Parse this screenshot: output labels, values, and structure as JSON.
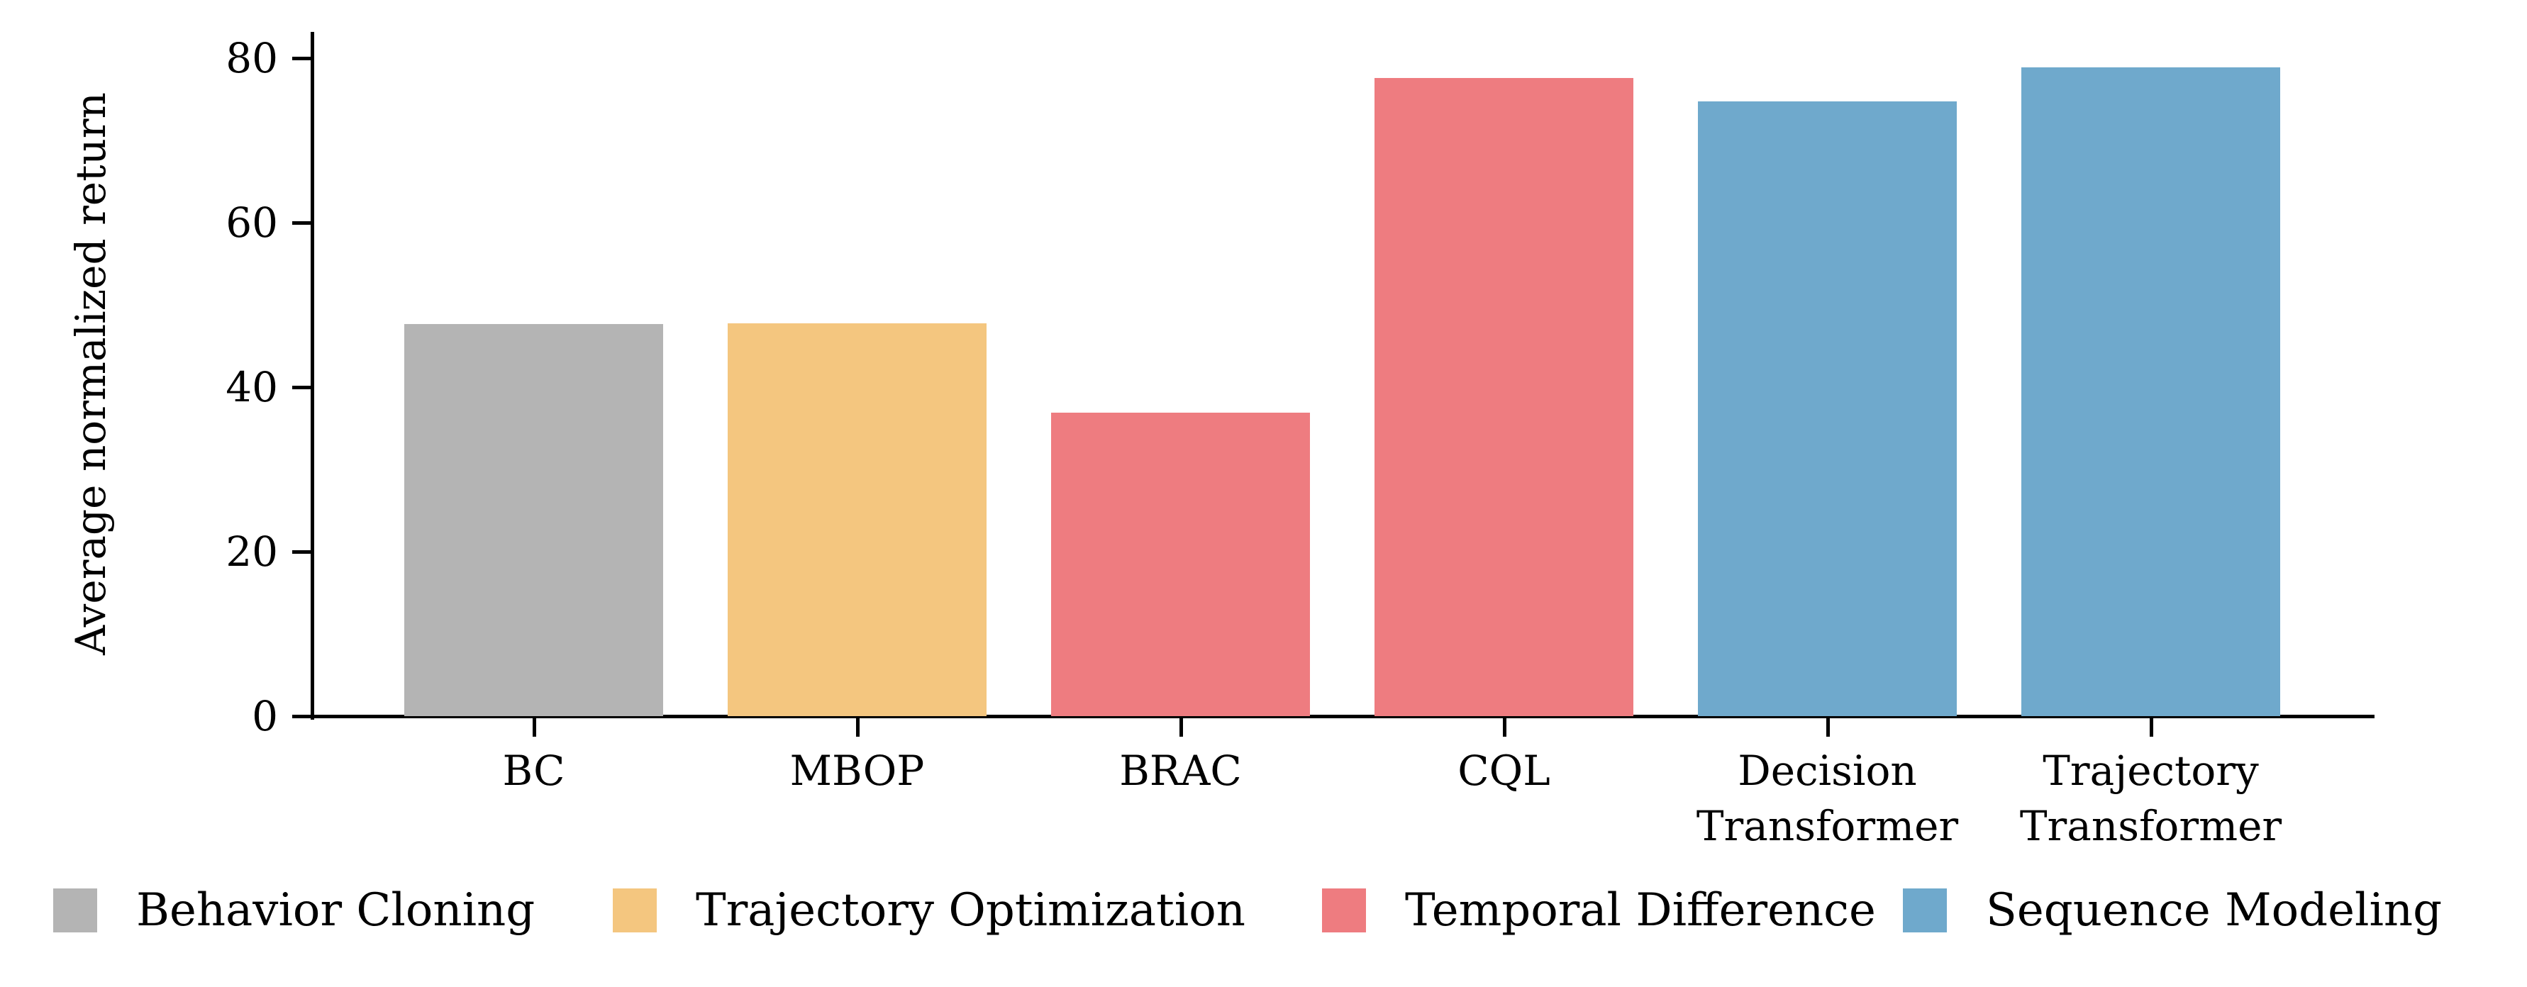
{
  "figure": {
    "background": "#ffffff",
    "axis_color": "#000000"
  },
  "chart_data": {
    "type": "bar",
    "title": "",
    "xlabel": "",
    "ylabel": "Average normalized return",
    "ylim": [
      0,
      83
    ],
    "yticks": [
      0,
      20,
      40,
      60,
      80
    ],
    "grid": false,
    "legend_position": "bottom",
    "categories": [
      "BC",
      "MBOP",
      "BRAC",
      "CQL",
      "Decision\nTransformer",
      "Trajectory\nTransformer"
    ],
    "values": [
      47.7,
      47.8,
      36.9,
      77.6,
      74.7,
      78.9
    ],
    "bar_groups": [
      "Behavior Cloning",
      "Trajectory Optimization",
      "Temporal Difference",
      "Temporal Difference",
      "Sequence Modeling",
      "Sequence Modeling"
    ],
    "bar_colors": [
      "#b4b4b4",
      "#f4c67f",
      "#ee7c80",
      "#ee7c80",
      "#6fa9cc",
      "#6fa9cc"
    ],
    "legend": [
      {
        "label": "Behavior Cloning",
        "color": "#b4b4b4"
      },
      {
        "label": "Trajectory Optimization",
        "color": "#f4c67f"
      },
      {
        "label": "Temporal Difference",
        "color": "#ee7c80"
      },
      {
        "label": "Sequence Modeling",
        "color": "#6fa9cc"
      }
    ]
  }
}
